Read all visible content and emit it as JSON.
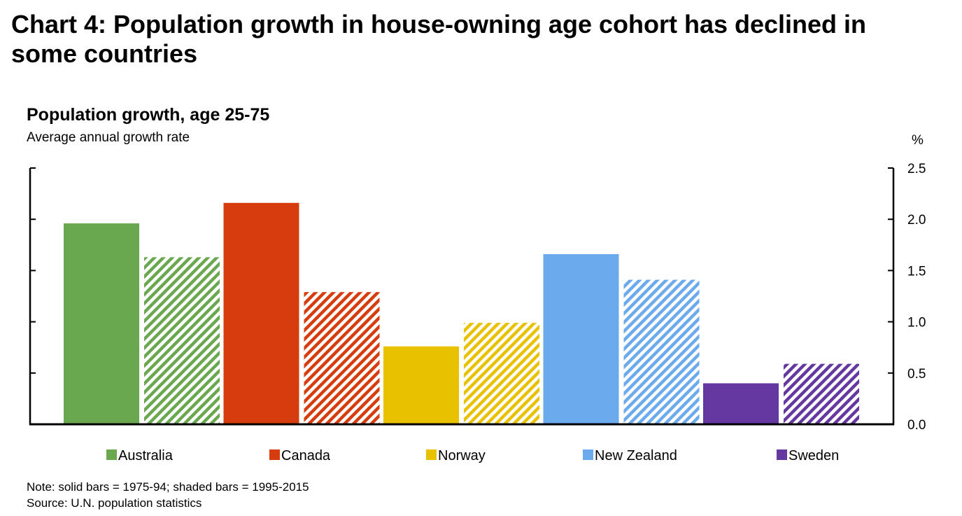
{
  "header": {
    "title": "Chart 4: Population growth in house-owning age cohort has declined in some countries"
  },
  "notes": {
    "note": "Note: solid bars = 1975-94; shaded bars = 1995-2015",
    "source": "Source: U.N. population statistics"
  },
  "chart_data": {
    "type": "bar",
    "title": "Population growth, age 25-75",
    "subtitle": "Average annual growth rate",
    "unit": "%",
    "xlabel": "",
    "ylabel": "",
    "ylim": [
      0,
      2.5
    ],
    "yticks": [
      "0.0",
      "0.5",
      "1.0",
      "1.5",
      "2.0",
      "2.5"
    ],
    "grid": false,
    "legend_position": "bottom",
    "categories": [
      "Australia",
      "Canada",
      "Norway",
      "New Zealand",
      "Sweden"
    ],
    "colors": [
      "#6aa84f",
      "#d63c0d",
      "#e8c100",
      "#6aaaed",
      "#6438a0"
    ],
    "series": [
      {
        "name": "solid bars = 1975-94",
        "pattern": "solid",
        "values": [
          1.96,
          2.16,
          0.76,
          1.66,
          0.4
        ]
      },
      {
        "name": "shaded bars = 1995-2015",
        "pattern": "hatched",
        "values": [
          1.63,
          1.29,
          0.99,
          1.41,
          0.59
        ]
      }
    ]
  }
}
